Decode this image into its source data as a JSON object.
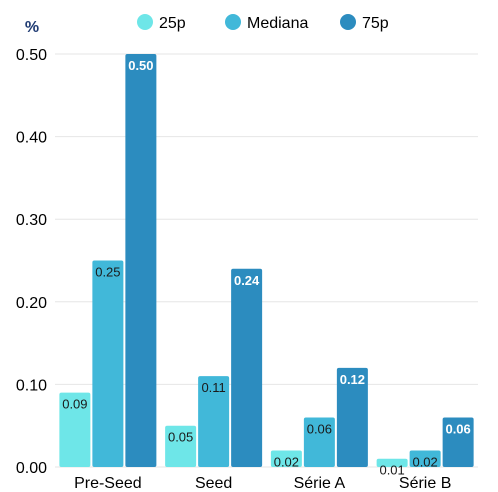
{
  "chart_data": {
    "type": "bar",
    "ylabel": "%",
    "categories": [
      "Pre-Seed",
      "Seed",
      "Série A",
      "Série B"
    ],
    "series": [
      {
        "name": "25p",
        "color": "#6ee6e8",
        "values": [
          0.09,
          0.05,
          0.02,
          0.01
        ],
        "labels": [
          "0.09",
          "0.05",
          "0.02",
          "0.01"
        ]
      },
      {
        "name": "Mediana",
        "color": "#41b8d9",
        "values": [
          0.25,
          0.11,
          0.06,
          0.02
        ],
        "labels": [
          "0.25",
          "0.11",
          "0.06",
          "0.02"
        ]
      },
      {
        "name": "75p",
        "color": "#2c8cbf",
        "values": [
          0.5,
          0.24,
          0.12,
          0.06
        ],
        "labels": [
          "0.50",
          "0.24",
          "0.12",
          "0.06"
        ]
      }
    ],
    "yticks": [
      "0.00",
      "0.10",
      "0.20",
      "0.30",
      "0.40",
      "0.50"
    ],
    "ylim": [
      0,
      0.5
    ],
    "grid": true,
    "legend": "top-center",
    "colors": {
      "ink": "#000000",
      "unit": "#1f3b73",
      "grid": "#e6e6e6",
      "label_dark": "#1a1a1a",
      "label_light": "#ffffff"
    }
  }
}
